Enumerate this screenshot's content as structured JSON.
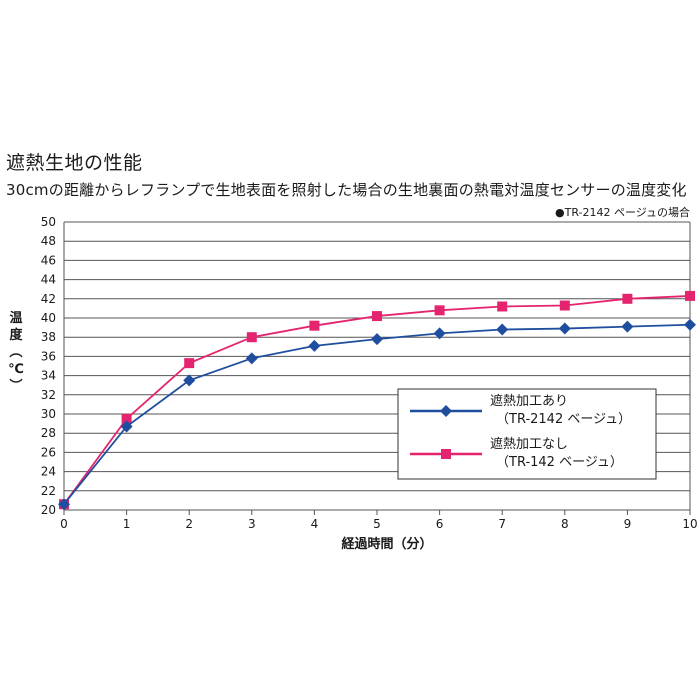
{
  "header": {
    "title": "遮熱生地の性能",
    "subtitle": "30cmの距離からレフランプで生地表面を照射した場合の生地裏面の熱電対温度センサーの温度変化"
  },
  "note": "●TR-2142 ページュの場合",
  "colors": {
    "blue": "#1f4e9e",
    "pink": "#e5246f",
    "grid": "#555555"
  },
  "chart_data": {
    "type": "line",
    "xlabel": "経過時間（分）",
    "ylabel": "温度（℃）",
    "ylabel_chars": [
      "温",
      "度",
      "︵",
      "℃",
      "︶"
    ],
    "xlim": [
      0,
      10
    ],
    "ylim": [
      20,
      50
    ],
    "x_ticks": [
      "0",
      "1",
      "2",
      "3",
      "4",
      "5",
      "6",
      "7",
      "8",
      "9",
      "10"
    ],
    "y_ticks": [
      "20",
      "22",
      "24",
      "26",
      "28",
      "30",
      "32",
      "34",
      "36",
      "38",
      "40",
      "42",
      "44",
      "46",
      "48",
      "50"
    ],
    "grid": true,
    "legend_position": "lower-right",
    "x": [
      0,
      1,
      2,
      3,
      4,
      5,
      6,
      7,
      8,
      9,
      10
    ],
    "series": [
      {
        "name": "遮熱加工あり",
        "name_sub": "（TR-2142 ベージュ）",
        "marker": "diamond",
        "color": "#1f4e9e",
        "values": [
          20.6,
          28.7,
          33.5,
          35.8,
          37.1,
          37.8,
          38.4,
          38.8,
          38.9,
          39.1,
          39.3
        ]
      },
      {
        "name": "遮熱加工なし",
        "name_sub": "（TR-142 ベージュ）",
        "marker": "square",
        "color": "#e5246f",
        "values": [
          20.6,
          29.5,
          35.3,
          38.0,
          39.2,
          40.2,
          40.8,
          41.2,
          41.3,
          42.0,
          42.3
        ]
      }
    ]
  }
}
